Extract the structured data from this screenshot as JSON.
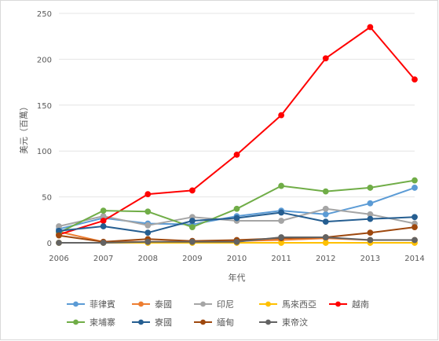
{
  "chart_data": {
    "type": "line",
    "title": "",
    "xlabel": "年代",
    "ylabel": "美元（百萬）",
    "x": [
      "2006",
      "2007",
      "2008",
      "2009",
      "2010",
      "2011",
      "2012",
      "2013",
      "2014"
    ],
    "ylim": [
      0,
      250
    ],
    "yticks": [
      0,
      50,
      100,
      150,
      200,
      250
    ],
    "grid": true,
    "legend_position": "bottom",
    "series": [
      {
        "name": "菲律賓",
        "color": "#5b9bd5",
        "values": [
          15,
          27,
          21,
          20,
          29,
          35,
          31,
          43,
          60
        ]
      },
      {
        "name": "泰國",
        "color": "#ed7d31",
        "values": [
          12,
          1,
          1,
          1,
          2,
          3,
          5,
          3,
          3
        ]
      },
      {
        "name": "印尼",
        "color": "#a5a5a5",
        "values": [
          18,
          29,
          19,
          28,
          24,
          24,
          37,
          31,
          21
        ]
      },
      {
        "name": "馬來西亞",
        "color": "#ffc000",
        "values": [
          0,
          0,
          0,
          0,
          0,
          0,
          0,
          0,
          0
        ]
      },
      {
        "name": "越南",
        "color": "#ff0000",
        "values": [
          9,
          24,
          53,
          57,
          96,
          139,
          201,
          235,
          178
        ]
      },
      {
        "name": "柬埔寨",
        "color": "#70ad47",
        "values": [
          11,
          35,
          34,
          17,
          37,
          62,
          56,
          60,
          68
        ]
      },
      {
        "name": "寮國",
        "color": "#255e91",
        "values": [
          13,
          18,
          11,
          24,
          27,
          33,
          23,
          26,
          28
        ]
      },
      {
        "name": "緬甸",
        "color": "#9e480e",
        "values": [
          8,
          1,
          4,
          2,
          3,
          5,
          6,
          11,
          17
        ]
      },
      {
        "name": "東帝汶",
        "color": "#636363",
        "values": [
          0,
          0,
          1,
          1,
          1,
          6,
          6,
          3,
          3
        ]
      }
    ]
  }
}
